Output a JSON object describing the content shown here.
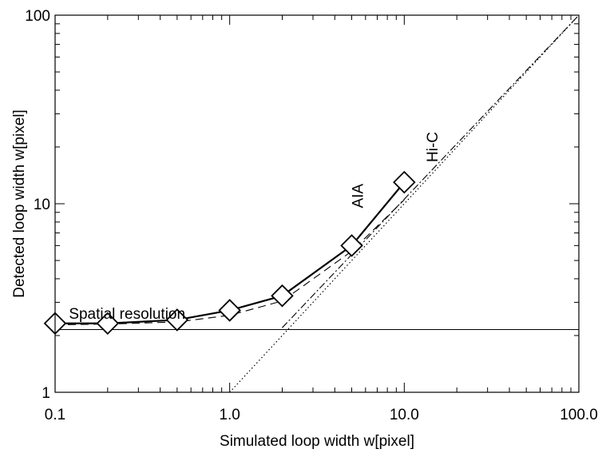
{
  "chart_data": {
    "type": "line",
    "xlabel": "Simulated loop width w[pixel]",
    "ylabel": "Detected loop width w[pixel]",
    "x_scale": "log",
    "y_scale": "log",
    "xlim": [
      0.1,
      100
    ],
    "ylim": [
      1,
      100
    ],
    "x_ticks": [
      {
        "value": 0.1,
        "label": "0.1"
      },
      {
        "value": 1,
        "label": "1.0"
      },
      {
        "value": 10,
        "label": "10.0"
      },
      {
        "value": 100,
        "label": "100.0"
      }
    ],
    "y_ticks": [
      {
        "value": 1,
        "label": "1"
      },
      {
        "value": 10,
        "label": "10"
      },
      {
        "value": 100,
        "label": "100"
      }
    ],
    "grid": false,
    "series": [
      {
        "style": "solid-diamond",
        "x": [
          0.1,
          0.2,
          0.5,
          1.0,
          2.0,
          5.0,
          10.0
        ],
        "y": [
          2.32,
          2.32,
          2.42,
          2.72,
          3.25,
          6.0,
          13.0
        ]
      },
      {
        "style": "dashed",
        "x": [
          0.1,
          0.2,
          0.5,
          1.0,
          2.0,
          5.0,
          10.0
        ],
        "y": [
          2.28,
          2.3,
          2.36,
          2.56,
          3.05,
          5.6,
          10.5
        ]
      },
      {
        "style": "dotted",
        "x": [
          1.0,
          100.0
        ],
        "y": [
          1.0,
          100.0
        ]
      },
      {
        "style": "dash-dot",
        "x": [
          2.0,
          100.0
        ],
        "y": [
          2.2,
          100.0
        ]
      },
      {
        "style": "thin-horizontal",
        "x": [
          0.1,
          100.0
        ],
        "y": [
          2.15,
          2.15
        ]
      }
    ],
    "annotations": [
      {
        "text": "Spatial resolution",
        "x": 0.12,
        "y": 2.45,
        "rotation": 0
      },
      {
        "text": "AIA",
        "x": 5.8,
        "y": 11.0,
        "rotation": -90
      },
      {
        "text": "Hi-C",
        "x": 15.5,
        "y": 20.0,
        "rotation": -90
      }
    ]
  }
}
